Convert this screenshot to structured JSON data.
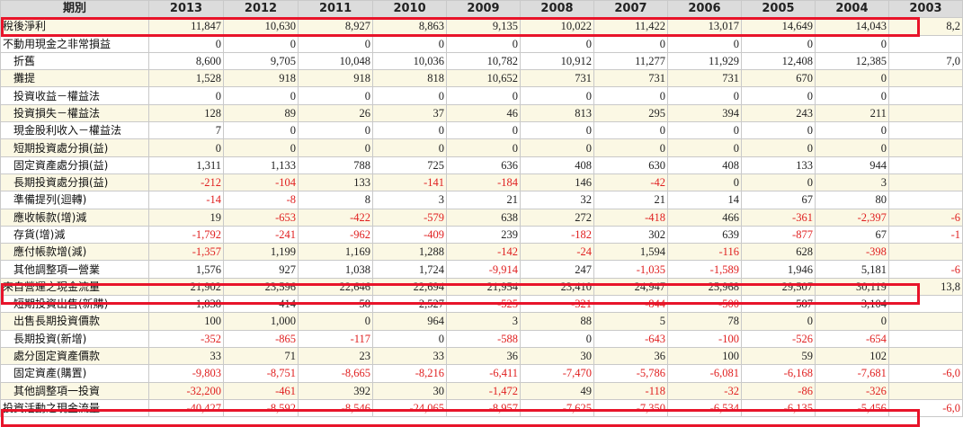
{
  "header": {
    "period_label": "期別",
    "years": [
      "2013",
      "2012",
      "2011",
      "2010",
      "2009",
      "2008",
      "2007",
      "2006",
      "2005",
      "2004",
      "2003"
    ]
  },
  "rows": [
    {
      "label": "稅後淨利",
      "indent": false,
      "alt": true,
      "values": [
        "11,847",
        "10,630",
        "8,927",
        "8,863",
        "9,135",
        "10,022",
        "11,422",
        "13,017",
        "14,649",
        "14,043",
        "8,2"
      ]
    },
    {
      "label": "不動用現金之非常損益",
      "indent": false,
      "alt": false,
      "values": [
        "0",
        "0",
        "0",
        "0",
        "0",
        "0",
        "0",
        "0",
        "0",
        "0",
        ""
      ]
    },
    {
      "label": "折舊",
      "indent": true,
      "alt": false,
      "values": [
        "8,600",
        "9,705",
        "10,048",
        "10,036",
        "10,782",
        "10,912",
        "11,277",
        "11,929",
        "12,408",
        "12,385",
        "7,0"
      ]
    },
    {
      "label": "攤提",
      "indent": true,
      "alt": true,
      "values": [
        "1,528",
        "918",
        "918",
        "818",
        "10,652",
        "731",
        "731",
        "731",
        "670",
        "0",
        ""
      ]
    },
    {
      "label": "投資收益－權益法",
      "indent": true,
      "alt": false,
      "values": [
        "0",
        "0",
        "0",
        "0",
        "0",
        "0",
        "0",
        "0",
        "0",
        "0",
        ""
      ]
    },
    {
      "label": "投資損失－權益法",
      "indent": true,
      "alt": true,
      "values": [
        "128",
        "89",
        "26",
        "37",
        "46",
        "813",
        "295",
        "394",
        "243",
        "211",
        ""
      ]
    },
    {
      "label": "現金股利收入－權益法",
      "indent": true,
      "alt": false,
      "values": [
        "7",
        "0",
        "0",
        "0",
        "0",
        "0",
        "0",
        "0",
        "0",
        "0",
        ""
      ]
    },
    {
      "label": "短期投資處分損(益)",
      "indent": true,
      "alt": true,
      "values": [
        "0",
        "0",
        "0",
        "0",
        "0",
        "0",
        "0",
        "0",
        "0",
        "0",
        ""
      ]
    },
    {
      "label": "固定資產處分損(益)",
      "indent": true,
      "alt": false,
      "values": [
        "1,311",
        "1,133",
        "788",
        "725",
        "636",
        "408",
        "630",
        "408",
        "133",
        "944",
        ""
      ]
    },
    {
      "label": "長期投資處分損(益)",
      "indent": true,
      "alt": true,
      "values": [
        "-212",
        "-104",
        "133",
        "-141",
        "-184",
        "146",
        "-42",
        "0",
        "0",
        "3",
        ""
      ]
    },
    {
      "label": "準備提列(迴轉)",
      "indent": true,
      "alt": false,
      "values": [
        "-14",
        "-8",
        "8",
        "3",
        "21",
        "32",
        "21",
        "14",
        "67",
        "80",
        ""
      ]
    },
    {
      "label": "應收帳款(增)減",
      "indent": true,
      "alt": true,
      "values": [
        "19",
        "-653",
        "-422",
        "-579",
        "638",
        "272",
        "-418",
        "466",
        "-361",
        "-2,397",
        "-6"
      ]
    },
    {
      "label": "存貨(增)減",
      "indent": true,
      "alt": false,
      "values": [
        "-1,792",
        "-241",
        "-962",
        "-409",
        "239",
        "-182",
        "302",
        "639",
        "-877",
        "67",
        "-1"
      ]
    },
    {
      "label": "應付帳款增(減)",
      "indent": true,
      "alt": true,
      "values": [
        "-1,357",
        "1,199",
        "1,169",
        "1,288",
        "-142",
        "-24",
        "1,594",
        "-116",
        "628",
        "-398",
        ""
      ]
    },
    {
      "label": "其他調整項一營業",
      "indent": true,
      "alt": false,
      "values": [
        "1,576",
        "927",
        "1,038",
        "1,724",
        "-9,914",
        "247",
        "-1,035",
        "-1,589",
        "1,946",
        "5,181",
        "-6"
      ]
    },
    {
      "label": "來自營運之現金流量",
      "indent": false,
      "alt": true,
      "values": [
        "21,902",
        "23,596",
        "22,646",
        "22,694",
        "21,954",
        "23,410",
        "24,947",
        "25,968",
        "29,507",
        "30,119",
        "13,8"
      ]
    },
    {
      "label": "短期投資出售(新購)",
      "indent": true,
      "alt": false,
      "values": [
        "1,838",
        "414",
        "58",
        "2,527",
        "-525",
        "-321",
        "-844",
        "-500",
        "587",
        "3,104",
        ""
      ]
    },
    {
      "label": "出售長期投資價款",
      "indent": true,
      "alt": true,
      "values": [
        "100",
        "1,000",
        "0",
        "964",
        "3",
        "88",
        "5",
        "78",
        "0",
        "0",
        ""
      ]
    },
    {
      "label": "長期投資(新增)",
      "indent": true,
      "alt": false,
      "values": [
        "-352",
        "-865",
        "-117",
        "0",
        "-588",
        "0",
        "-643",
        "-100",
        "-526",
        "-654",
        ""
      ]
    },
    {
      "label": "處分固定資產價款",
      "indent": true,
      "alt": true,
      "values": [
        "33",
        "71",
        "23",
        "33",
        "36",
        "30",
        "36",
        "100",
        "59",
        "102",
        ""
      ]
    },
    {
      "label": "固定資產(購置)",
      "indent": true,
      "alt": false,
      "values": [
        "-9,803",
        "-8,751",
        "-8,665",
        "-8,216",
        "-6,411",
        "-7,470",
        "-5,786",
        "-6,081",
        "-6,168",
        "-7,681",
        "-6,0"
      ]
    },
    {
      "label": "其他調整項一投資",
      "indent": true,
      "alt": true,
      "values": [
        "-32,200",
        "-461",
        "392",
        "30",
        "-1,472",
        "49",
        "-118",
        "-32",
        "-86",
        "-326",
        ""
      ]
    },
    {
      "label": "投資活動之現金流量",
      "indent": false,
      "alt": false,
      "values": [
        "-40,427",
        "-8,592",
        "-8,546",
        "-24,065",
        "-8,957",
        "-7,625",
        "-7,350",
        "-6,534",
        "-6,135",
        "-5,456",
        "-6,0"
      ]
    }
  ],
  "highlight_color": "#e8142a",
  "negative_color": "#e02020"
}
